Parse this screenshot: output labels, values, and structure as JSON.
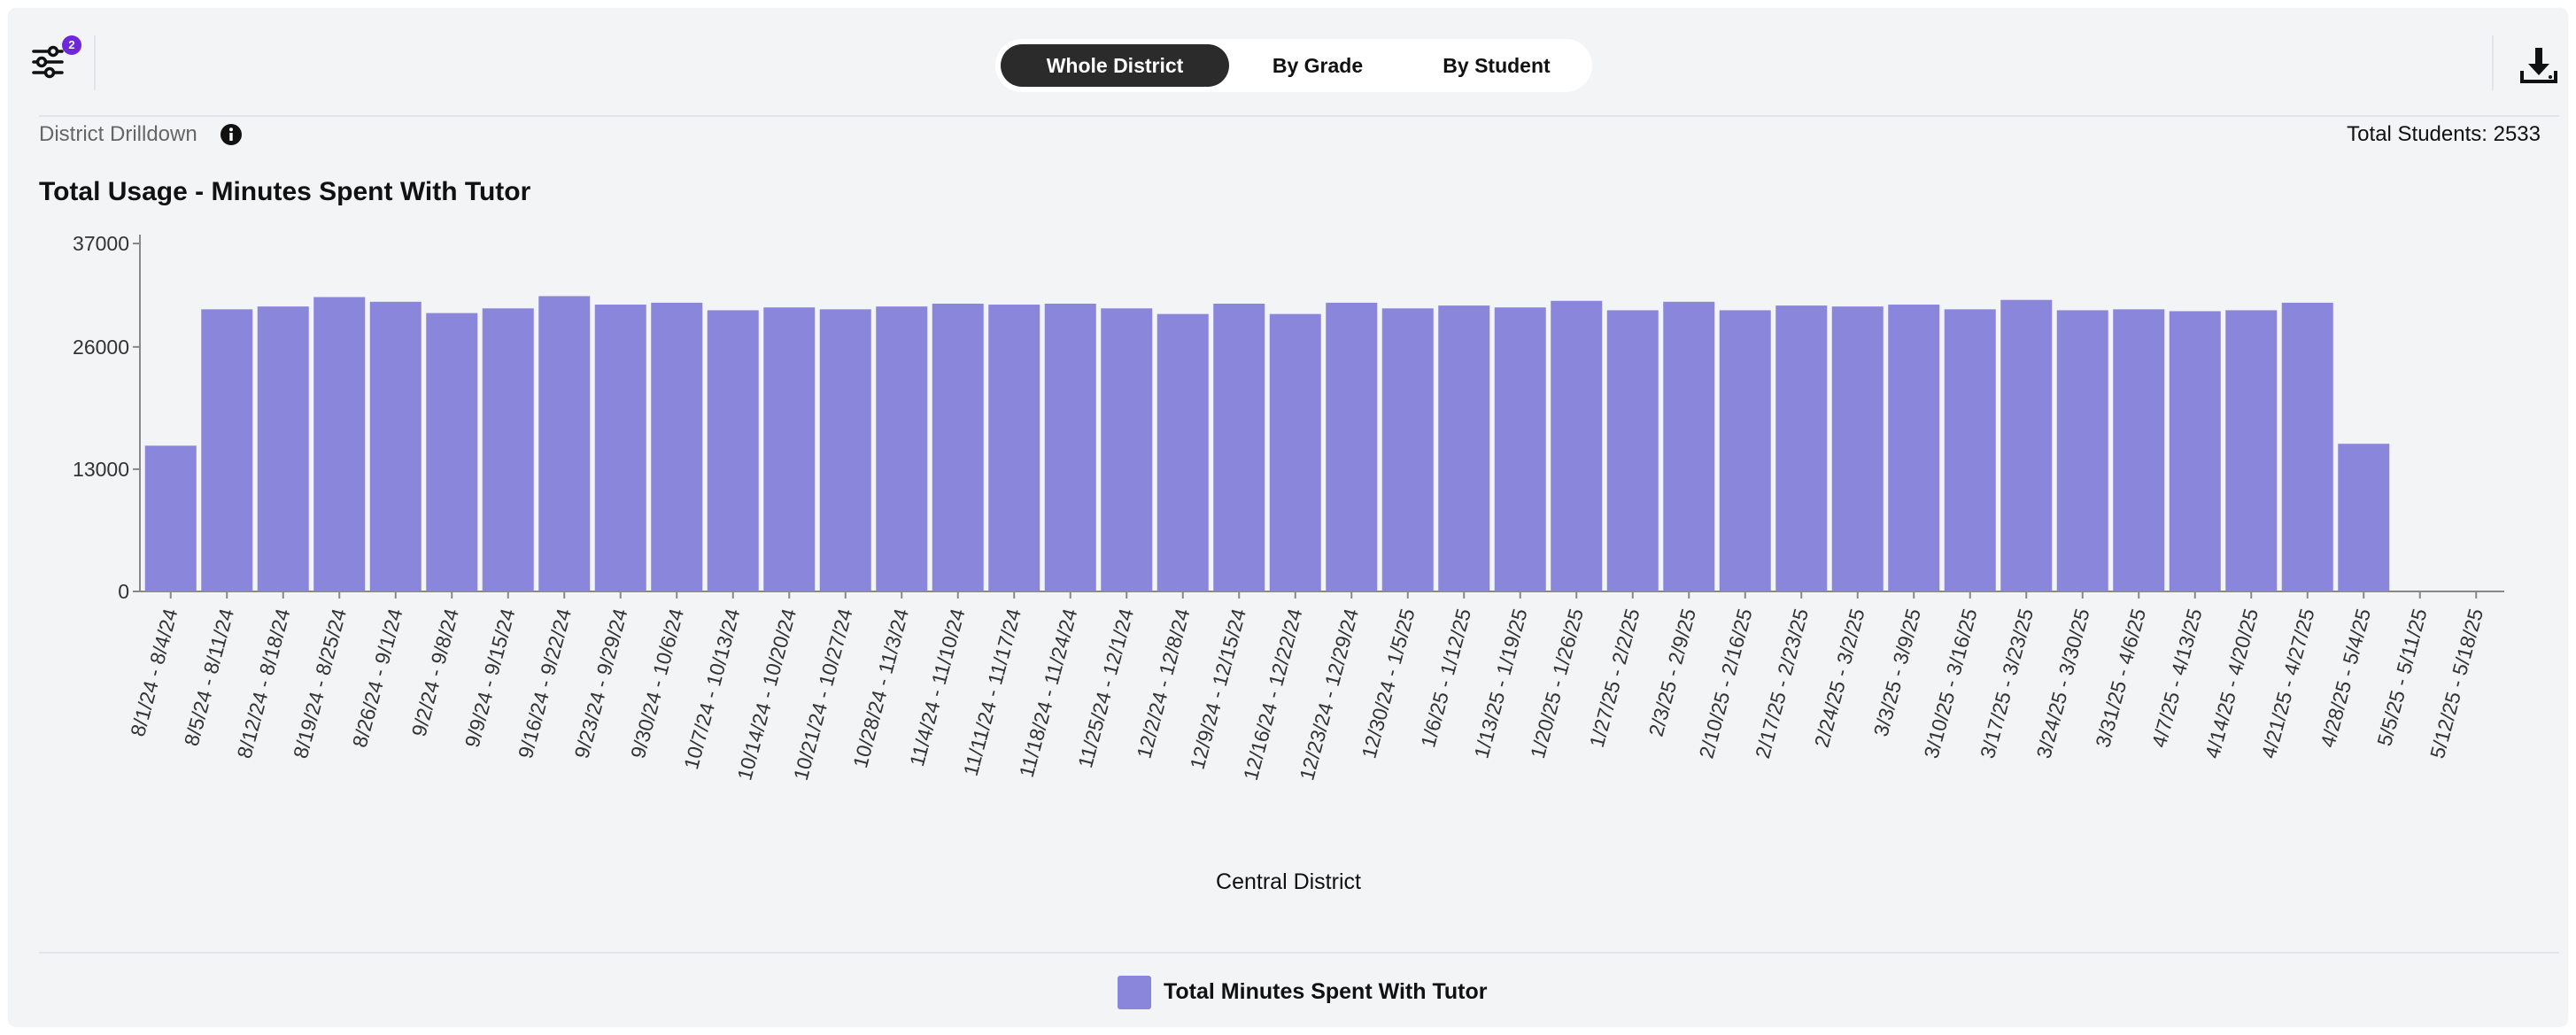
{
  "toolbar": {
    "filter_badge": "2",
    "filter_icon": "sliders-icon",
    "download_icon": "download-icon"
  },
  "view_toggle": {
    "options": [
      "Whole District",
      "By Grade",
      "By Student"
    ],
    "selected": "Whole District"
  },
  "header": {
    "drilldown_label": "District Drilldown",
    "info_icon": "info-icon",
    "total_students": "Total Students: 2533"
  },
  "colors": {
    "bar": "#8a86dc",
    "active_toggle": "#2b2b2b",
    "badge": "#6d28d9"
  },
  "chart_data": {
    "type": "bar",
    "title": "Total Usage - Minutes Spent With Tutor",
    "xlabel": "Central District",
    "ylabel": "",
    "ylim": [
      0,
      37000
    ],
    "yticks": [
      "37000",
      "26000",
      "13000",
      "0"
    ],
    "ytick_values": [
      37000,
      26000,
      13000,
      0
    ],
    "categories": [
      "8/1/24 - 8/4/24",
      "8/5/24 - 8/11/24",
      "8/12/24 - 8/18/24",
      "8/19/24 - 8/25/24",
      "8/26/24 - 9/1/24",
      "9/2/24 - 9/8/24",
      "9/9/24 - 9/15/24",
      "9/16/24 - 9/22/24",
      "9/23/24 - 9/29/24",
      "9/30/24 - 10/6/24",
      "10/7/24 - 10/13/24",
      "10/14/24 - 10/20/24",
      "10/21/24 - 10/27/24",
      "10/28/24 - 11/3/24",
      "11/4/24 - 11/10/24",
      "11/11/24 - 11/17/24",
      "11/18/24 - 11/24/24",
      "11/25/24 - 12/1/24",
      "12/2/24 - 12/8/24",
      "12/9/24 - 12/15/24",
      "12/16/24 - 12/22/24",
      "12/23/24 - 12/29/24",
      "12/30/24 - 1/5/25",
      "1/6/25 - 1/12/25",
      "1/13/25 - 1/19/25",
      "1/20/25 - 1/26/25",
      "1/27/25 - 2/2/25",
      "2/3/25 - 2/9/25",
      "2/10/25 - 2/16/25",
      "2/17/25 - 2/23/25",
      "2/24/25 - 3/2/25",
      "3/3/25 - 3/9/25",
      "3/10/25 - 3/16/25",
      "3/17/25 - 3/23/25",
      "3/24/25 - 3/30/25",
      "3/31/25 - 4/6/25",
      "4/7/25 - 4/13/25",
      "4/14/25 - 4/20/25",
      "4/21/25 - 4/27/25",
      "4/28/25 - 5/4/25",
      "5/5/25 - 5/11/25",
      "5/12/25 - 5/18/25"
    ],
    "series": [
      {
        "name": "Total Minutes Spent With Tutor",
        "values": [
          15500,
          30000,
          30300,
          31300,
          30800,
          29600,
          30100,
          31400,
          30500,
          30700,
          29900,
          30200,
          30000,
          30300,
          30600,
          30500,
          30600,
          30100,
          29500,
          30600,
          29500,
          30700,
          30100,
          30400,
          30200,
          30900,
          29900,
          30800,
          29900,
          30400,
          30300,
          30500,
          30000,
          31000,
          29900,
          30000,
          29800,
          29900,
          30700,
          15700,
          0,
          0
        ]
      }
    ],
    "grid": false,
    "legend": "bottom-center"
  }
}
